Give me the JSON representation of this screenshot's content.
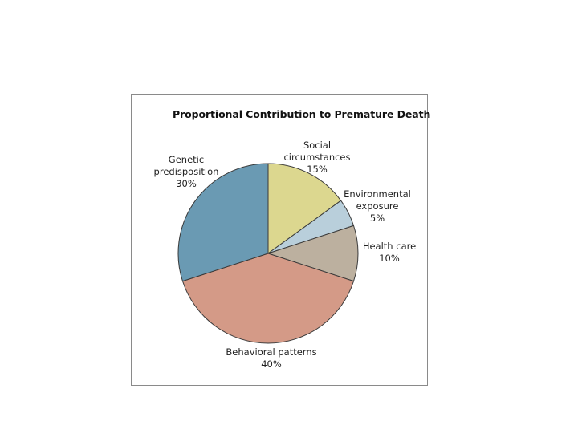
{
  "chart_data": {
    "type": "pie",
    "title": "Proportional Contribution to Premature Death",
    "slices": [
      {
        "name": "Social circumstances",
        "lines": [
          "Social",
          "circumstances",
          "15%"
        ],
        "value": 15,
        "color": "#dcd78f"
      },
      {
        "name": "Environmental exposure",
        "lines": [
          "Environmental",
          "exposure",
          "5%"
        ],
        "value": 5,
        "color": "#b9cfdb"
      },
      {
        "name": "Health care",
        "lines": [
          "Health care",
          "10%"
        ],
        "value": 10,
        "color": "#bcb09f"
      },
      {
        "name": "Behavioral patterns",
        "lines": [
          "Behavioral patterns",
          "40%"
        ],
        "value": 40,
        "color": "#d49a87"
      },
      {
        "name": "Genetic predisposition",
        "lines": [
          "Genetic",
          "predisposition",
          "30%"
        ],
        "value": 30,
        "color": "#6a9ab3"
      }
    ],
    "start_angle_deg": 0,
    "direction": "clockwise",
    "edge_color": "#3a3a3a"
  }
}
